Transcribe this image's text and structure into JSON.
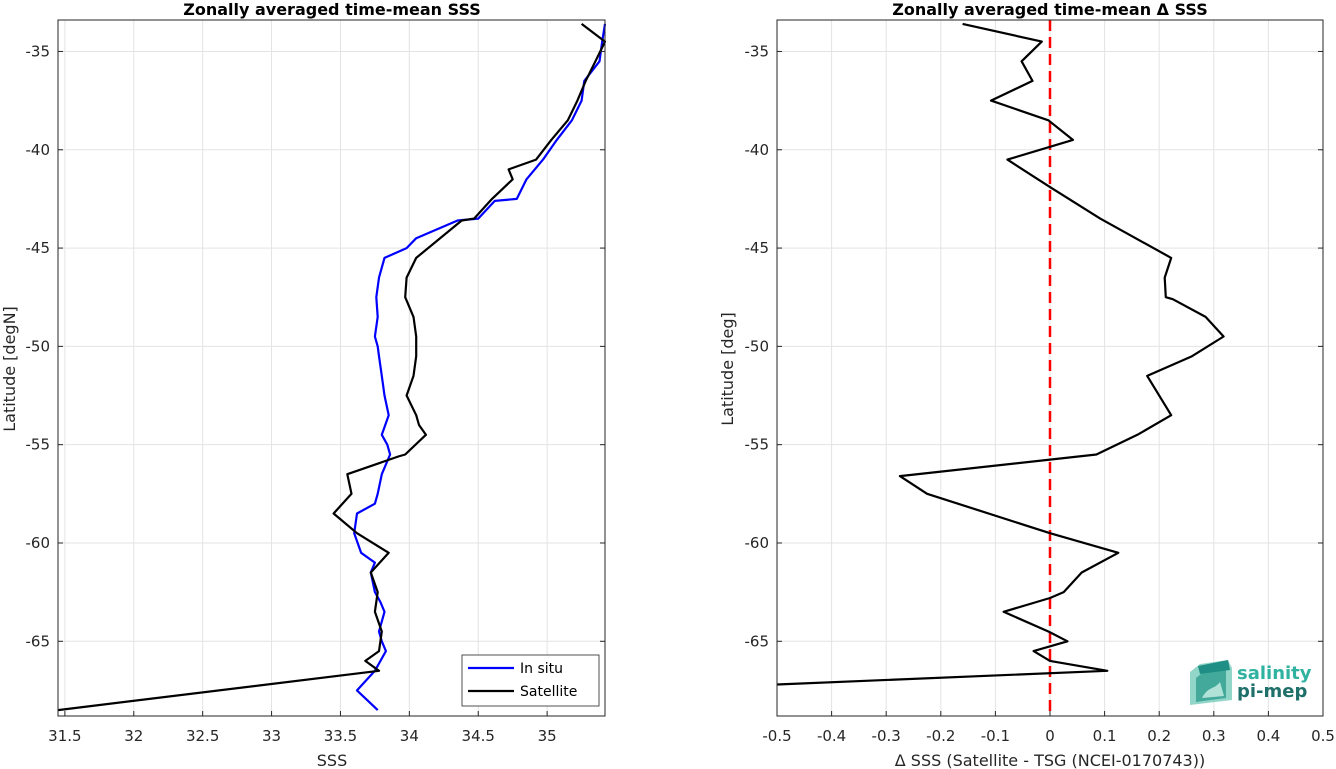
{
  "chart_data": [
    {
      "type": "line",
      "title": "Zonally averaged time-mean SSS",
      "xlabel": "SSS",
      "ylabel": "Latitude [degN]",
      "xlim": [
        31.45,
        35.42
      ],
      "ylim": [
        -68.8,
        -33.4
      ],
      "xticks": [
        31.5,
        32,
        32.5,
        33,
        33.5,
        34,
        34.5,
        35
      ],
      "yticks": [
        -35,
        -40,
        -45,
        -50,
        -55,
        -60,
        -65
      ],
      "grid": true,
      "legend": {
        "position": "bottom-right",
        "entries": [
          "In situ",
          "Satellite"
        ]
      },
      "series": [
        {
          "name": "In situ",
          "color": "#0000ff",
          "x": [
            35.42,
            35.4,
            35.38,
            35.27,
            35.25,
            35.18,
            35.07,
            34.97,
            34.85,
            34.78,
            34.62,
            34.5,
            34.35,
            34.05,
            33.98,
            33.82,
            33.78,
            33.76,
            33.77,
            33.75,
            33.77,
            33.78,
            33.8,
            33.82,
            33.85,
            33.8,
            33.84,
            33.86,
            33.8,
            33.77,
            33.75,
            33.62,
            33.6,
            33.65,
            33.75,
            33.72,
            33.75,
            33.79,
            33.82,
            33.78,
            33.8,
            33.83,
            33.75,
            33.62,
            33.77
          ],
          "y": [
            -33.6,
            -34.5,
            -35.5,
            -36.5,
            -37.5,
            -38.5,
            -39.5,
            -40.5,
            -41.5,
            -42.5,
            -42.6,
            -43.5,
            -43.6,
            -44.5,
            -45.0,
            -45.5,
            -46.5,
            -47.5,
            -48.5,
            -49.5,
            -50.0,
            -50.5,
            -51.5,
            -52.5,
            -53.5,
            -54.5,
            -55.0,
            -55.5,
            -56.5,
            -57.5,
            -58.0,
            -58.5,
            -59.5,
            -60.5,
            -61.0,
            -61.5,
            -62.5,
            -63.0,
            -63.5,
            -64.5,
            -65.0,
            -65.5,
            -66.5,
            -67.5,
            -68.5
          ]
        },
        {
          "name": "Satellite",
          "color": "#000000",
          "x": [
            35.25,
            35.42,
            35.35,
            35.28,
            35.22,
            35.15,
            35.03,
            34.92,
            34.72,
            34.75,
            34.6,
            34.47,
            34.38,
            34.05,
            34.05,
            33.98,
            33.97,
            34.03,
            34.05,
            34.05,
            34.03,
            33.98,
            34.05,
            34.07,
            34.12,
            33.97,
            33.92,
            33.55,
            33.58,
            33.45,
            33.62,
            33.85,
            33.72,
            33.77,
            33.75,
            33.8,
            33.78,
            33.68,
            33.78,
            31.45
          ],
          "y": [
            -33.6,
            -34.5,
            -35.5,
            -36.5,
            -37.5,
            -38.5,
            -39.5,
            -40.5,
            -41.0,
            -41.5,
            -42.5,
            -43.5,
            -43.6,
            -45.5,
            -45.5,
            -46.5,
            -47.5,
            -48.5,
            -49.5,
            -50.5,
            -51.5,
            -52.5,
            -53.5,
            -54.0,
            -54.5,
            -55.5,
            -55.6,
            -56.5,
            -57.5,
            -58.5,
            -59.5,
            -60.5,
            -61.5,
            -62.5,
            -63.5,
            -64.5,
            -65.5,
            -66.0,
            -66.5,
            -68.5
          ]
        }
      ]
    },
    {
      "type": "line",
      "title": "Zonally averaged time-mean Δ SSS",
      "xlabel": "Δ SSS (Satellite - TSG (NCEI-0170743))",
      "ylabel": "Latitude [deg]",
      "xlim": [
        -0.5,
        0.5
      ],
      "ylim": [
        -68.8,
        -33.4
      ],
      "xticks": [
        -0.5,
        -0.4,
        -0.3,
        -0.2,
        -0.1,
        0,
        0.1,
        0.2,
        0.3,
        0.4,
        0.5
      ],
      "yticks": [
        -35,
        -40,
        -45,
        -50,
        -55,
        -60,
        -65
      ],
      "grid": true,
      "reference_line": {
        "x": 0,
        "color": "#ff0000",
        "style": "dashed"
      },
      "series": [
        {
          "color": "#000000",
          "x": [
            -0.16,
            -0.015,
            -0.052,
            -0.032,
            -0.108,
            -0.003,
            0.042,
            -0.078,
            0.0,
            0.092,
            0.222,
            0.21,
            0.212,
            0.225,
            0.285,
            0.318,
            0.26,
            0.178,
            0.222,
            0.16,
            0.085,
            -0.275,
            -0.225,
            0.0,
            0.125,
            0.058,
            0.025,
            0.0,
            -0.085,
            -0.003,
            0.032,
            -0.03,
            0.0,
            0.105,
            -0.5
          ],
          "y": [
            -33.6,
            -34.5,
            -35.5,
            -36.5,
            -37.5,
            -38.5,
            -39.5,
            -40.5,
            -41.9,
            -43.5,
            -45.5,
            -46.5,
            -47.5,
            -47.6,
            -48.5,
            -49.5,
            -50.5,
            -51.5,
            -53.5,
            -54.5,
            -55.5,
            -56.6,
            -57.5,
            -59.5,
            -60.5,
            -61.5,
            -62.5,
            -62.8,
            -63.5,
            -64.5,
            -65.0,
            -65.5,
            -66.0,
            -66.5,
            -67.2
          ]
        }
      ]
    }
  ],
  "logo": {
    "line1": "salinity",
    "line2": "pi-mep"
  }
}
